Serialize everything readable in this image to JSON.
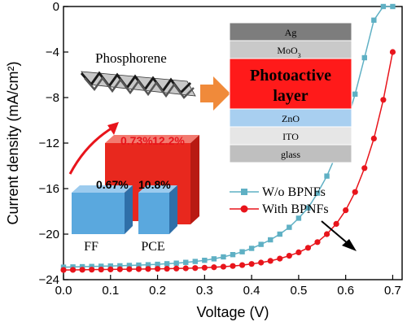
{
  "colors": {
    "wo_series": "#5fb0c4",
    "with_series": "#e8141b",
    "bar_blue": "#5aa8de",
    "bar_red": "#e8281e",
    "arrow_orange": "#f08a3a"
  },
  "chart_data": {
    "type": "line",
    "xlabel": "Voltage (V)",
    "ylabel": "Current density (mA/cm²)",
    "xlim": [
      0.0,
      0.72
    ],
    "ylim": [
      -24,
      0
    ],
    "xticks": [
      0.0,
      0.1,
      0.2,
      0.3,
      0.4,
      0.5,
      0.6,
      0.7
    ],
    "xtick_labels": [
      "0.0",
      "0.1",
      "0.2",
      "0.3",
      "0.4",
      "0.5",
      "0.6",
      "0.7"
    ],
    "yticks": [
      0,
      -4,
      -8,
      -12,
      -16,
      -20,
      -24
    ],
    "ytick_labels": [
      "0",
      "−4",
      "−8",
      "−12",
      "−16",
      "−20",
      "−24"
    ],
    "legend_position": "middle-right",
    "series": [
      {
        "name": "W/o BPNFs",
        "marker": "square",
        "x": [
          0.0,
          0.02,
          0.04,
          0.06,
          0.08,
          0.1,
          0.12,
          0.14,
          0.16,
          0.18,
          0.2,
          0.22,
          0.24,
          0.26,
          0.28,
          0.3,
          0.32,
          0.34,
          0.36,
          0.38,
          0.4,
          0.42,
          0.44,
          0.46,
          0.48,
          0.5,
          0.52,
          0.54,
          0.56,
          0.58,
          0.6,
          0.62,
          0.64,
          0.66,
          0.68,
          0.7
        ],
        "y": [
          -22.9,
          -22.88,
          -22.86,
          -22.84,
          -22.82,
          -22.8,
          -22.78,
          -22.75,
          -22.72,
          -22.69,
          -22.65,
          -22.6,
          -22.55,
          -22.48,
          -22.4,
          -22.3,
          -22.17,
          -22.0,
          -21.8,
          -21.55,
          -21.25,
          -20.9,
          -20.5,
          -20.0,
          -19.4,
          -18.6,
          -17.7,
          -16.4,
          -14.9,
          -13.0,
          -10.5,
          -7.7,
          -4.5,
          -1.2,
          0.0,
          0.0
        ]
      },
      {
        "name": "With BPNFs",
        "marker": "circle",
        "x": [
          0.0,
          0.02,
          0.04,
          0.06,
          0.08,
          0.1,
          0.12,
          0.14,
          0.16,
          0.18,
          0.2,
          0.22,
          0.24,
          0.26,
          0.28,
          0.3,
          0.32,
          0.34,
          0.36,
          0.38,
          0.4,
          0.42,
          0.44,
          0.46,
          0.48,
          0.5,
          0.52,
          0.54,
          0.56,
          0.58,
          0.6,
          0.62,
          0.64,
          0.66,
          0.68,
          0.7
        ],
        "y": [
          -23.15,
          -23.14,
          -23.13,
          -23.12,
          -23.11,
          -23.1,
          -23.09,
          -23.08,
          -23.07,
          -23.06,
          -23.05,
          -23.04,
          -23.02,
          -23.0,
          -22.98,
          -22.95,
          -22.91,
          -22.86,
          -22.8,
          -22.72,
          -22.62,
          -22.5,
          -22.35,
          -22.15,
          -21.9,
          -21.6,
          -21.2,
          -20.7,
          -20.0,
          -19.1,
          -17.9,
          -16.3,
          -14.2,
          -11.6,
          -8.2,
          -4.0
        ]
      }
    ],
    "inset": {
      "molecule_label": "Phosphorene",
      "layers": [
        "Ag",
        "MoO3",
        "Photoactive layer",
        "ZnO",
        "ITO",
        "glass"
      ],
      "photoactive_line1": "Photoactive",
      "photoactive_line2": "layer",
      "moo3_main": "MoO",
      "moo3_sub": "3",
      "bar_categories": [
        "FF",
        "PCE"
      ],
      "ff_increase": "0.67%",
      "pce_increase": "10.8%",
      "ff_increase_with": "0.73%",
      "pce_increase_with": "12.2%"
    }
  }
}
